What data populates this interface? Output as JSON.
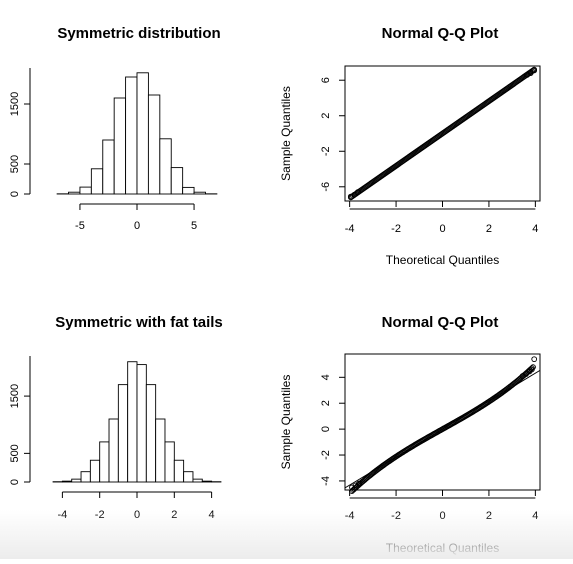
{
  "chart_data": [
    {
      "type": "bar",
      "title": "Symmetric distribution",
      "xlabel": "",
      "ylabel": "",
      "bin_edges": [
        -7,
        -6,
        -5,
        -4,
        -3,
        -2,
        -1,
        0,
        1,
        2,
        3,
        4,
        5,
        6,
        7
      ],
      "values": [
        3,
        30,
        115,
        420,
        900,
        1600,
        1950,
        2020,
        1650,
        920,
        440,
        110,
        30,
        3
      ],
      "xticks": [
        -5,
        0,
        5
      ],
      "yticks": [
        0,
        500,
        1500
      ],
      "xlim": [
        -8.5,
        8.5
      ],
      "ylim": [
        0,
        2100
      ]
    },
    {
      "type": "scatter",
      "title": "Normal Q-Q Plot",
      "xlabel": "Theoretical Quantiles",
      "ylabel": "Sample Quantiles",
      "x_range": [
        -3.95,
        3.95
      ],
      "slope": 1.82,
      "intercept": 0.0,
      "tail_points": [
        [
          -3.95,
          -7.1
        ],
        [
          -3.8,
          -6.9
        ],
        [
          -3.65,
          -6.6
        ],
        [
          3.65,
          6.6
        ],
        [
          3.8,
          6.8
        ],
        [
          3.95,
          7.1
        ]
      ],
      "reference_line": false,
      "xticks": [
        -4,
        -2,
        0,
        2,
        4
      ],
      "yticks": [
        -6,
        -2,
        2,
        6
      ],
      "xlim": [
        -4.2,
        4.2
      ],
      "ylim": [
        -7.6,
        7.6
      ]
    },
    {
      "type": "bar",
      "title": "Symmetric with fat tails",
      "xlabel": "",
      "ylabel": "",
      "bin_edges": [
        -4.5,
        -4,
        -3.5,
        -3,
        -2.5,
        -2,
        -1.5,
        -1,
        -0.5,
        0,
        0.5,
        1,
        1.5,
        2,
        2.5,
        3,
        3.5,
        4,
        4.5
      ],
      "values": [
        5,
        15,
        50,
        180,
        380,
        700,
        1100,
        1700,
        2100,
        2050,
        1700,
        1100,
        700,
        380,
        180,
        50,
        15,
        5
      ],
      "xticks": [
        -4,
        -2,
        0,
        2,
        4
      ],
      "yticks": [
        0,
        500,
        1500
      ],
      "xlim": [
        -5.2,
        5.2
      ],
      "ylim": [
        0,
        2200
      ]
    },
    {
      "type": "scatter",
      "title": "Normal Q-Q Plot",
      "xlabel": "Theoretical Quantiles",
      "ylabel": "Sample Quantiles",
      "x_range": [
        -3.9,
        3.9
      ],
      "slope": 1.0,
      "intercept": 0.0,
      "tail_points": [
        [
          -3.9,
          -4.5
        ],
        [
          -3.75,
          -4.35
        ],
        [
          -3.6,
          -4.2
        ],
        [
          -3.45,
          -4.05
        ],
        [
          3.45,
          4.1
        ],
        [
          3.6,
          4.25
        ],
        [
          3.75,
          4.45
        ],
        [
          3.85,
          4.6
        ],
        [
          3.95,
          5.4
        ]
      ],
      "reference_line": true,
      "reference_slope": 1.08,
      "xticks": [
        -4,
        -2,
        0,
        2,
        4
      ],
      "yticks": [
        -4,
        -2,
        0,
        2,
        4
      ],
      "xlim": [
        -4.2,
        4.2
      ],
      "ylim": [
        -4.7,
        5.8
      ]
    }
  ]
}
